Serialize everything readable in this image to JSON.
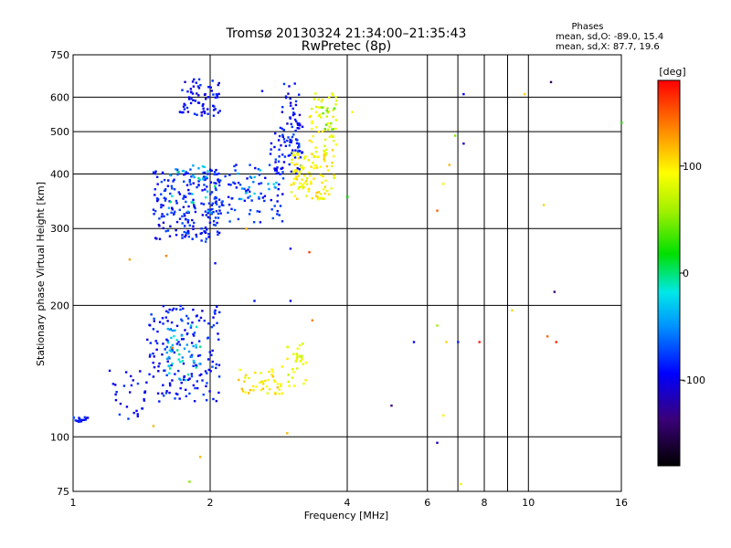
{
  "chart_data": {
    "type": "scatter",
    "title": "Tromsø 20130324 21:34:00–21:35:43",
    "subtitle": "RwPretec (8p)",
    "xlabel": "Frequency [MHz]",
    "ylabel": "Stationary phase Virtual Height [km]",
    "x_scale": "log",
    "y_scale": "log",
    "xlim": [
      1,
      16
    ],
    "ylim": [
      75,
      750
    ],
    "x_ticks": [
      1,
      2,
      4,
      6,
      8,
      10,
      16
    ],
    "x_minor_ticks": [
      7,
      9
    ],
    "y_ticks": [
      75,
      100,
      200,
      300,
      400,
      500,
      600,
      750
    ],
    "grid": true,
    "stats": {
      "title": "Phases",
      "line1": "mean, sd,O: -89.0, 15.4",
      "line2": "mean, sd,X: 87.7, 19.6"
    },
    "colorbar": {
      "label": "[deg]",
      "range": [
        -180,
        180
      ],
      "ticks": [
        -100,
        0,
        100
      ],
      "tick_labels": [
        "-100",
        "0",
        "100"
      ]
    },
    "clusters": [
      {
        "x": [
          1.0,
          1.08
        ],
        "y": [
          108,
          112
        ],
        "n": 18,
        "phase": -95
      },
      {
        "x": [
          1.2,
          1.45
        ],
        "y": [
          110,
          142
        ],
        "n": 30,
        "phase": -95
      },
      {
        "x": [
          1.45,
          2.1
        ],
        "y": [
          120,
          200
        ],
        "n": 170,
        "phase": -92
      },
      {
        "x": [
          1.6,
          1.9
        ],
        "y": [
          135,
          180
        ],
        "n": 45,
        "phase": -30
      },
      {
        "x": [
          2.3,
          2.9
        ],
        "y": [
          125,
          145
        ],
        "n": 45,
        "phase": 100
      },
      {
        "x": [
          2.95,
          3.25
        ],
        "y": [
          130,
          165
        ],
        "n": 30,
        "phase": 85
      },
      {
        "x": [
          1.5,
          2.1
        ],
        "y": [
          280,
          410
        ],
        "n": 210,
        "phase": -92
      },
      {
        "x": [
          1.6,
          2.05
        ],
        "y": [
          325,
          420
        ],
        "n": 30,
        "phase": -30
      },
      {
        "x": [
          2.05,
          2.9
        ],
        "y": [
          310,
          420
        ],
        "n": 80,
        "phase": -88
      },
      {
        "x": [
          2.3,
          2.8
        ],
        "y": [
          350,
          410
        ],
        "n": 20,
        "phase": -40
      },
      {
        "x": [
          2.7,
          3.2
        ],
        "y": [
          400,
          520
        ],
        "n": 60,
        "phase": -90
      },
      {
        "x": [
          3.0,
          3.75
        ],
        "y": [
          350,
          450
        ],
        "n": 110,
        "phase": 95
      },
      {
        "x": [
          3.3,
          3.8
        ],
        "y": [
          450,
          620
        ],
        "n": 55,
        "phase": 90
      },
      {
        "x": [
          3.5,
          3.75
        ],
        "y": [
          500,
          570
        ],
        "n": 12,
        "phase": 40
      },
      {
        "x": [
          1.7,
          2.1
        ],
        "y": [
          540,
          660
        ],
        "n": 70,
        "phase": -100
      },
      {
        "x": [
          2.85,
          3.15
        ],
        "y": [
          440,
          650
        ],
        "n": 45,
        "phase": -100
      }
    ],
    "isolated_points": [
      {
        "x": 1.33,
        "y": 255,
        "phase": 130
      },
      {
        "x": 1.5,
        "y": 106,
        "phase": 120
      },
      {
        "x": 1.6,
        "y": 260,
        "phase": 140
      },
      {
        "x": 1.65,
        "y": 160,
        "phase": 150
      },
      {
        "x": 1.8,
        "y": 79,
        "phase": 40
      },
      {
        "x": 1.9,
        "y": 90,
        "phase": 120
      },
      {
        "x": 2.05,
        "y": 250,
        "phase": -95
      },
      {
        "x": 2.4,
        "y": 300,
        "phase": 120
      },
      {
        "x": 2.5,
        "y": 205,
        "phase": -95
      },
      {
        "x": 2.6,
        "y": 620,
        "phase": -95
      },
      {
        "x": 2.95,
        "y": 102,
        "phase": 120
      },
      {
        "x": 3.0,
        "y": 205,
        "phase": -100
      },
      {
        "x": 3.0,
        "y": 270,
        "phase": -95
      },
      {
        "x": 3.3,
        "y": 265,
        "phase": 160
      },
      {
        "x": 3.35,
        "y": 185,
        "phase": 140
      },
      {
        "x": 4.0,
        "y": 355,
        "phase": 0
      },
      {
        "x": 4.1,
        "y": 555,
        "phase": 90
      },
      {
        "x": 5.0,
        "y": 118,
        "phase": -140
      },
      {
        "x": 5.6,
        "y": 165,
        "phase": -100
      },
      {
        "x": 6.3,
        "y": 97,
        "phase": -120
      },
      {
        "x": 6.3,
        "y": 180,
        "phase": 50
      },
      {
        "x": 6.3,
        "y": 330,
        "phase": 150
      },
      {
        "x": 6.5,
        "y": 112,
        "phase": 100
      },
      {
        "x": 6.5,
        "y": 380,
        "phase": 100
      },
      {
        "x": 6.6,
        "y": 165,
        "phase": 110
      },
      {
        "x": 6.7,
        "y": 420,
        "phase": 120
      },
      {
        "x": 6.9,
        "y": 490,
        "phase": 40
      },
      {
        "x": 7.0,
        "y": 165,
        "phase": -90
      },
      {
        "x": 7.1,
        "y": 78,
        "phase": 100
      },
      {
        "x": 7.2,
        "y": 470,
        "phase": -120
      },
      {
        "x": 7.2,
        "y": 610,
        "phase": -100
      },
      {
        "x": 7.8,
        "y": 165,
        "phase": 170
      },
      {
        "x": 9.2,
        "y": 195,
        "phase": 110
      },
      {
        "x": 9.8,
        "y": 610,
        "phase": 110
      },
      {
        "x": 10.8,
        "y": 340,
        "phase": 110
      },
      {
        "x": 11.0,
        "y": 170,
        "phase": 150
      },
      {
        "x": 11.2,
        "y": 650,
        "phase": -150
      },
      {
        "x": 11.4,
        "y": 215,
        "phase": -140
      },
      {
        "x": 11.5,
        "y": 165,
        "phase": 170
      },
      {
        "x": 16.0,
        "y": 525,
        "phase": 10
      }
    ]
  }
}
